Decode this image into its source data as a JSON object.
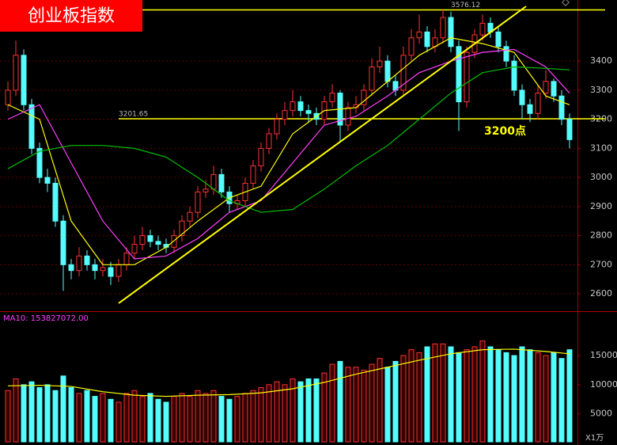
{
  "chart_data": [
    {
      "type": "candlestick",
      "title": "创业板指数",
      "annotation": "3200点",
      "ylim": [
        2543,
        3610
      ],
      "yticks": [
        2600,
        2700,
        2800,
        2900,
        3000,
        3100,
        3200,
        3300,
        3400
      ],
      "levels": [
        3201.65,
        3576.12
      ],
      "level_color": "#ffff00",
      "up_color": "#ff3232",
      "down_color": "#54fcfc",
      "grid": true,
      "candles": [
        [
          3250,
          3330,
          3230,
          3300
        ],
        [
          3300,
          3470,
          3280,
          3420
        ],
        [
          3420,
          3440,
          3230,
          3250
        ],
        [
          3250,
          3270,
          3080,
          3100
        ],
        [
          3100,
          3120,
          2980,
          3000
        ],
        [
          3000,
          3030,
          2950,
          2980
        ],
        [
          2980,
          3000,
          2830,
          2850
        ],
        [
          2850,
          2870,
          2610,
          2700
        ],
        [
          2700,
          2720,
          2650,
          2680
        ],
        [
          2680,
          2760,
          2660,
          2730
        ],
        [
          2730,
          2750,
          2680,
          2700
        ],
        [
          2700,
          2720,
          2650,
          2680
        ],
        [
          2680,
          2720,
          2660,
          2690
        ],
        [
          2690,
          2710,
          2630,
          2660
        ],
        [
          2660,
          2720,
          2640,
          2700
        ],
        [
          2700,
          2760,
          2680,
          2740
        ],
        [
          2740,
          2800,
          2720,
          2770
        ],
        [
          2770,
          2830,
          2750,
          2800
        ],
        [
          2800,
          2820,
          2760,
          2780
        ],
        [
          2780,
          2800,
          2750,
          2770
        ],
        [
          2770,
          2790,
          2740,
          2760
        ],
        [
          2760,
          2820,
          2740,
          2800
        ],
        [
          2800,
          2870,
          2780,
          2850
        ],
        [
          2850,
          2900,
          2830,
          2880
        ],
        [
          2880,
          2970,
          2860,
          2950
        ],
        [
          2950,
          2990,
          2930,
          2960
        ],
        [
          2960,
          3040,
          2940,
          3010
        ],
        [
          3010,
          3030,
          2930,
          2950
        ],
        [
          2950,
          2970,
          2880,
          2910
        ],
        [
          2910,
          2940,
          2890,
          2920
        ],
        [
          2920,
          3000,
          2900,
          2980
        ],
        [
          2980,
          3060,
          2960,
          3040
        ],
        [
          3040,
          3120,
          3020,
          3100
        ],
        [
          3100,
          3170,
          3080,
          3150
        ],
        [
          3150,
          3220,
          3130,
          3200
        ],
        [
          3200,
          3260,
          3180,
          3230
        ],
        [
          3230,
          3300,
          3210,
          3260
        ],
        [
          3260,
          3280,
          3210,
          3230
        ],
        [
          3230,
          3250,
          3190,
          3220
        ],
        [
          3220,
          3240,
          3180,
          3200
        ],
        [
          3200,
          3280,
          3180,
          3260
        ],
        [
          3260,
          3320,
          3240,
          3290
        ],
        [
          3290,
          3300,
          3120,
          3180
        ],
        [
          3180,
          3260,
          3160,
          3240
        ],
        [
          3240,
          3280,
          3220,
          3250
        ],
        [
          3250,
          3320,
          3230,
          3300
        ],
        [
          3300,
          3410,
          3280,
          3380
        ],
        [
          3380,
          3450,
          3360,
          3400
        ],
        [
          3400,
          3420,
          3310,
          3330
        ],
        [
          3330,
          3350,
          3280,
          3300
        ],
        [
          3300,
          3450,
          3280,
          3420
        ],
        [
          3420,
          3510,
          3400,
          3480
        ],
        [
          3480,
          3560,
          3460,
          3500
        ],
        [
          3500,
          3520,
          3430,
          3450
        ],
        [
          3450,
          3510,
          3430,
          3480
        ],
        [
          3480,
          3576.12,
          3460,
          3550
        ],
        [
          3550,
          3570,
          3430,
          3450
        ],
        [
          3450,
          3470,
          3160,
          3260
        ],
        [
          3260,
          3450,
          3240,
          3430
        ],
        [
          3430,
          3510,
          3410,
          3490
        ],
        [
          3490,
          3560,
          3470,
          3530
        ],
        [
          3530,
          3550,
          3480,
          3500
        ],
        [
          3500,
          3520,
          3430,
          3450
        ],
        [
          3450,
          3470,
          3380,
          3400
        ],
        [
          3400,
          3420,
          3280,
          3300
        ],
        [
          3300,
          3320,
          3200,
          3250
        ],
        [
          3250,
          3270,
          3190,
          3220
        ],
        [
          3220,
          3320,
          3200,
          3290
        ],
        [
          3290,
          3370,
          3270,
          3330
        ],
        [
          3330,
          3340,
          3260,
          3280
        ],
        [
          3280,
          3300,
          3180,
          3200
        ],
        [
          3200,
          3220,
          3100,
          3130
        ]
      ],
      "series": [
        {
          "color": "#ffff00",
          "x": [
            0,
            4,
            8,
            12,
            16,
            20,
            24,
            28,
            32,
            36,
            40,
            44,
            48,
            52,
            56,
            60,
            64,
            68,
            71
          ],
          "values": [
            3250,
            3200,
            2850,
            2700,
            2700,
            2760,
            2850,
            2930,
            2970,
            3150,
            3230,
            3240,
            3330,
            3420,
            3480,
            3460,
            3430,
            3280,
            3250
          ]
        },
        {
          "color": "#ff40ff",
          "x": [
            0,
            4,
            8,
            12,
            16,
            20,
            24,
            28,
            32,
            36,
            40,
            44,
            48,
            52,
            56,
            60,
            64,
            68,
            71
          ],
          "values": [
            3200,
            3250,
            3050,
            2850,
            2720,
            2730,
            2790,
            2880,
            2920,
            3050,
            3180,
            3210,
            3280,
            3360,
            3400,
            3430,
            3440,
            3380,
            3290
          ]
        },
        {
          "color": "#00c000",
          "x": [
            0,
            4,
            8,
            12,
            16,
            20,
            24,
            28,
            32,
            36,
            40,
            44,
            48,
            52,
            56,
            60,
            64,
            68,
            71
          ],
          "values": [
            3030,
            3090,
            3110,
            3110,
            3100,
            3070,
            3000,
            2920,
            2880,
            2890,
            2960,
            3040,
            3110,
            3200,
            3290,
            3360,
            3380,
            3375,
            3370
          ]
        }
      ]
    },
    {
      "type": "volume",
      "subtitle": "MA10: 153827072.00",
      "unit_label": "X1万",
      "ylim": [
        200,
        20300
      ],
      "yticks": [
        5000,
        10000,
        15000
      ],
      "values": [
        9000,
        11000,
        10000,
        10500,
        9500,
        10000,
        9000,
        11500,
        9500,
        8500,
        9000,
        8000,
        8500,
        7500,
        7000,
        8500,
        9000,
        8000,
        8500,
        7500,
        7000,
        8000,
        8500,
        8000,
        9000,
        8500,
        9000,
        8000,
        7500,
        8000,
        8500,
        9000,
        9500,
        10000,
        10500,
        10000,
        11000,
        10500,
        11000,
        11000,
        12000,
        13500,
        14000,
        13000,
        13000,
        12500,
        13500,
        14500,
        13000,
        14000,
        15000,
        16000,
        15500,
        16500,
        17000,
        17000,
        16500,
        15500,
        16000,
        16500,
        17500,
        16500,
        16000,
        15500,
        15000,
        16500,
        16000,
        15500,
        15000,
        15500,
        14500,
        16000
      ],
      "series": [
        {
          "color": "#ffff00",
          "x": [
            0,
            4,
            8,
            12,
            16,
            20,
            24,
            28,
            32,
            36,
            40,
            44,
            48,
            52,
            56,
            60,
            64,
            68,
            71
          ],
          "values": [
            9800,
            9900,
            9700,
            8800,
            8200,
            8000,
            8200,
            8300,
            8600,
            9300,
            10400,
            11800,
            13000,
            14200,
            15300,
            16000,
            16100,
            15700,
            15300
          ]
        }
      ]
    }
  ]
}
